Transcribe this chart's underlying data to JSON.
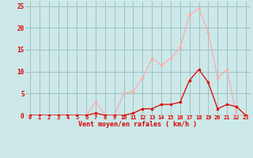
{
  "x": [
    0,
    1,
    2,
    3,
    4,
    5,
    6,
    7,
    8,
    9,
    10,
    11,
    12,
    13,
    14,
    15,
    16,
    17,
    18,
    19,
    20,
    21,
    22,
    23
  ],
  "rafales": [
    0,
    0,
    0,
    0,
    0,
    0,
    0,
    3,
    0,
    0,
    5,
    5.5,
    8.5,
    13,
    11.5,
    13,
    15.5,
    23,
    24.5,
    19,
    8.5,
    10.5,
    0,
    0
  ],
  "moyen": [
    0,
    0,
    0,
    0,
    0,
    0,
    0,
    0.5,
    0,
    0,
    0,
    0.5,
    1.5,
    1.5,
    2.5,
    2.5,
    3,
    8,
    10.5,
    7.5,
    1.5,
    2.5,
    2,
    0
  ],
  "color_rafales": "#ffaaaa",
  "color_moyen": "#dd0000",
  "bg_color": "#cce8e8",
  "grid_color": "#99bbbb",
  "xlabel": "Vent moyen/en rafales ( km/h )",
  "ylim": [
    0,
    26
  ],
  "yticks": [
    0,
    5,
    10,
    15,
    20,
    25
  ],
  "tick_color": "#dd0000",
  "marker_size": 2.0,
  "line_width": 0.9
}
